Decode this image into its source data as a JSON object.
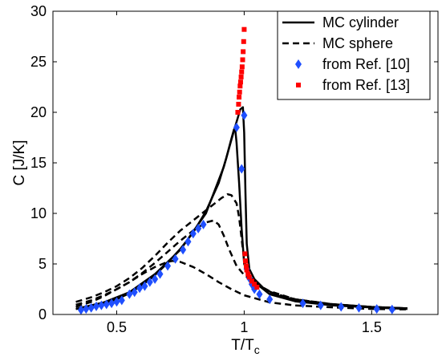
{
  "chart_data": {
    "type": "scatter",
    "xlabel_main": "T/T",
    "xlabel_sub": "c",
    "ylabel": "C [J/K]",
    "xlim": [
      0.25,
      1.76
    ],
    "ylim": [
      0,
      30
    ],
    "xticks": [
      0.5,
      1,
      1.5
    ],
    "xtick_labels": [
      "0.5",
      "1",
      "1.5"
    ],
    "yticks": [
      0,
      5,
      10,
      15,
      20,
      25,
      30
    ],
    "ytick_labels": [
      "0",
      "5",
      "10",
      "15",
      "20",
      "25",
      "30"
    ],
    "legend_position": "top-right",
    "series": [
      {
        "name": "MC cylinder",
        "kind": "line",
        "style": "solid",
        "color": "#000000",
        "curves": [
          [
            [
              0.34,
              0.55
            ],
            [
              0.4,
              0.8
            ],
            [
              0.45,
              1.1
            ],
            [
              0.5,
              1.5
            ],
            [
              0.55,
              2.1
            ],
            [
              0.6,
              2.9
            ],
            [
              0.65,
              3.9
            ],
            [
              0.7,
              5.1
            ],
            [
              0.75,
              6.5
            ],
            [
              0.8,
              8.1
            ],
            [
              0.85,
              10.2
            ],
            [
              0.9,
              13.0
            ],
            [
              0.93,
              15.5
            ],
            [
              0.95,
              17.4
            ],
            [
              0.96,
              18.3
            ],
            [
              0.965,
              18.3
            ],
            [
              0.97,
              17.0
            ],
            [
              0.98,
              13.0
            ],
            [
              0.99,
              8.5
            ],
            [
              1.0,
              5.0
            ],
            [
              1.02,
              3.8
            ],
            [
              1.05,
              3.0
            ],
            [
              1.1,
              2.0
            ],
            [
              1.2,
              1.3
            ],
            [
              1.35,
              0.9
            ],
            [
              1.5,
              0.7
            ],
            [
              1.64,
              0.55
            ]
          ],
          [
            [
              0.34,
              0.55
            ],
            [
              0.45,
              1.2
            ],
            [
              0.55,
              2.2
            ],
            [
              0.65,
              4.0
            ],
            [
              0.75,
              6.4
            ],
            [
              0.85,
              10.0
            ],
            [
              0.92,
              14.6
            ],
            [
              0.96,
              18.2
            ],
            [
              0.985,
              20.3
            ],
            [
              0.995,
              20.5
            ],
            [
              1.0,
              18.0
            ],
            [
              1.005,
              12.0
            ],
            [
              1.01,
              7.0
            ],
            [
              1.02,
              4.5
            ],
            [
              1.04,
              3.5
            ],
            [
              1.08,
              2.5
            ],
            [
              1.15,
              1.7
            ],
            [
              1.3,
              1.1
            ],
            [
              1.5,
              0.75
            ],
            [
              1.64,
              0.6
            ]
          ]
        ]
      },
      {
        "name": "MC sphere",
        "kind": "line",
        "style": "dashed",
        "color": "#000000",
        "curves": [
          [
            [
              0.34,
              1.25
            ],
            [
              0.4,
              1.7
            ],
            [
              0.45,
              2.2
            ],
            [
              0.5,
              2.8
            ],
            [
              0.55,
              3.6
            ],
            [
              0.6,
              4.6
            ],
            [
              0.65,
              5.8
            ],
            [
              0.7,
              7.1
            ],
            [
              0.75,
              8.3
            ],
            [
              0.8,
              9.3
            ],
            [
              0.85,
              10.3
            ],
            [
              0.88,
              10.9
            ],
            [
              0.91,
              11.5
            ],
            [
              0.935,
              11.9
            ],
            [
              0.95,
              11.8
            ],
            [
              0.97,
              11.0
            ],
            [
              0.98,
              9.6
            ],
            [
              0.99,
              7.5
            ],
            [
              1.0,
              5.3
            ],
            [
              1.02,
              3.8
            ],
            [
              1.05,
              3.0
            ],
            [
              1.1,
              2.2
            ],
            [
              1.2,
              1.5
            ],
            [
              1.35,
              1.0
            ],
            [
              1.5,
              0.75
            ],
            [
              1.64,
              0.6
            ]
          ],
          [
            [
              0.34,
              0.95
            ],
            [
              0.4,
              1.4
            ],
            [
              0.45,
              1.9
            ],
            [
              0.5,
              2.5
            ],
            [
              0.55,
              3.2
            ],
            [
              0.6,
              4.1
            ],
            [
              0.65,
              5.1
            ],
            [
              0.7,
              6.2
            ],
            [
              0.75,
              7.3
            ],
            [
              0.8,
              8.3
            ],
            [
              0.85,
              9.1
            ],
            [
              0.88,
              9.3
            ],
            [
              0.9,
              8.9
            ],
            [
              0.92,
              7.8
            ],
            [
              0.94,
              6.5
            ],
            [
              0.97,
              4.8
            ],
            [
              1.0,
              3.9
            ],
            [
              1.05,
              3.0
            ],
            [
              1.1,
              2.3
            ],
            [
              1.2,
              1.5
            ],
            [
              1.35,
              1.0
            ],
            [
              1.5,
              0.75
            ],
            [
              1.64,
              0.6
            ]
          ],
          [
            [
              0.34,
              0.75
            ],
            [
              0.4,
              1.25
            ],
            [
              0.45,
              1.8
            ],
            [
              0.5,
              2.5
            ],
            [
              0.55,
              3.2
            ],
            [
              0.6,
              4.0
            ],
            [
              0.65,
              4.7
            ],
            [
              0.7,
              5.2
            ],
            [
              0.72,
              5.3
            ],
            [
              0.75,
              5.2
            ],
            [
              0.8,
              4.7
            ],
            [
              0.85,
              4.0
            ],
            [
              0.9,
              3.2
            ],
            [
              0.95,
              2.5
            ],
            [
              1.0,
              1.9
            ],
            [
              1.1,
              1.2
            ],
            [
              1.2,
              0.9
            ],
            [
              1.35,
              0.7
            ],
            [
              1.5,
              0.55
            ],
            [
              1.64,
              0.5
            ]
          ]
        ]
      },
      {
        "name": "from Ref. [10]",
        "kind": "markers",
        "marker": "diamond",
        "color": "#1f4fff",
        "points": [
          [
            0.36,
            0.45
          ],
          [
            0.38,
            0.55
          ],
          [
            0.4,
            0.65
          ],
          [
            0.42,
            0.8
          ],
          [
            0.44,
            0.9
          ],
          [
            0.46,
            1.0
          ],
          [
            0.48,
            1.1
          ],
          [
            0.5,
            1.25
          ],
          [
            0.52,
            1.4
          ],
          [
            0.55,
            2.0
          ],
          [
            0.57,
            2.2
          ],
          [
            0.59,
            2.6
          ],
          [
            0.61,
            2.8
          ],
          [
            0.63,
            3.2
          ],
          [
            0.65,
            3.5
          ],
          [
            0.67,
            4.0
          ],
          [
            0.7,
            4.8
          ],
          [
            0.73,
            5.5
          ],
          [
            0.76,
            6.4
          ],
          [
            0.78,
            7.2
          ],
          [
            0.8,
            8.0
          ],
          [
            0.82,
            8.5
          ],
          [
            0.84,
            8.9
          ],
          [
            0.97,
            18.5
          ],
          [
            0.99,
            14.4
          ],
          [
            1.0,
            19.7
          ],
          [
            1.01,
            4.5
          ],
          [
            1.02,
            3.6
          ],
          [
            1.03,
            3.0
          ],
          [
            1.04,
            2.5
          ],
          [
            1.06,
            2.0
          ],
          [
            1.1,
            1.5
          ],
          [
            1.23,
            1.1
          ],
          [
            1.3,
            0.9
          ],
          [
            1.38,
            0.75
          ],
          [
            1.45,
            0.65
          ],
          [
            1.52,
            0.55
          ],
          [
            1.58,
            0.5
          ]
        ]
      },
      {
        "name": "from Ref. [13]",
        "kind": "markers",
        "marker": "square",
        "color": "#ff0000",
        "points": [
          [
            0.975,
            20.0
          ],
          [
            0.978,
            20.8
          ],
          [
            0.98,
            21.5
          ],
          [
            0.982,
            22.0
          ],
          [
            0.984,
            22.6
          ],
          [
            0.986,
            23.0
          ],
          [
            0.988,
            23.5
          ],
          [
            0.99,
            24.0
          ],
          [
            0.992,
            24.5
          ],
          [
            0.994,
            25.2
          ],
          [
            0.996,
            26.0
          ],
          [
            0.998,
            27.0
          ],
          [
            1.0,
            28.2
          ],
          [
            1.003,
            6.0
          ],
          [
            1.005,
            5.3
          ],
          [
            1.008,
            4.8
          ],
          [
            1.01,
            4.4
          ],
          [
            1.015,
            4.0
          ],
          [
            1.02,
            3.7
          ],
          [
            1.03,
            3.3
          ],
          [
            1.04,
            3.0
          ],
          [
            1.05,
            2.7
          ]
        ]
      }
    ]
  }
}
